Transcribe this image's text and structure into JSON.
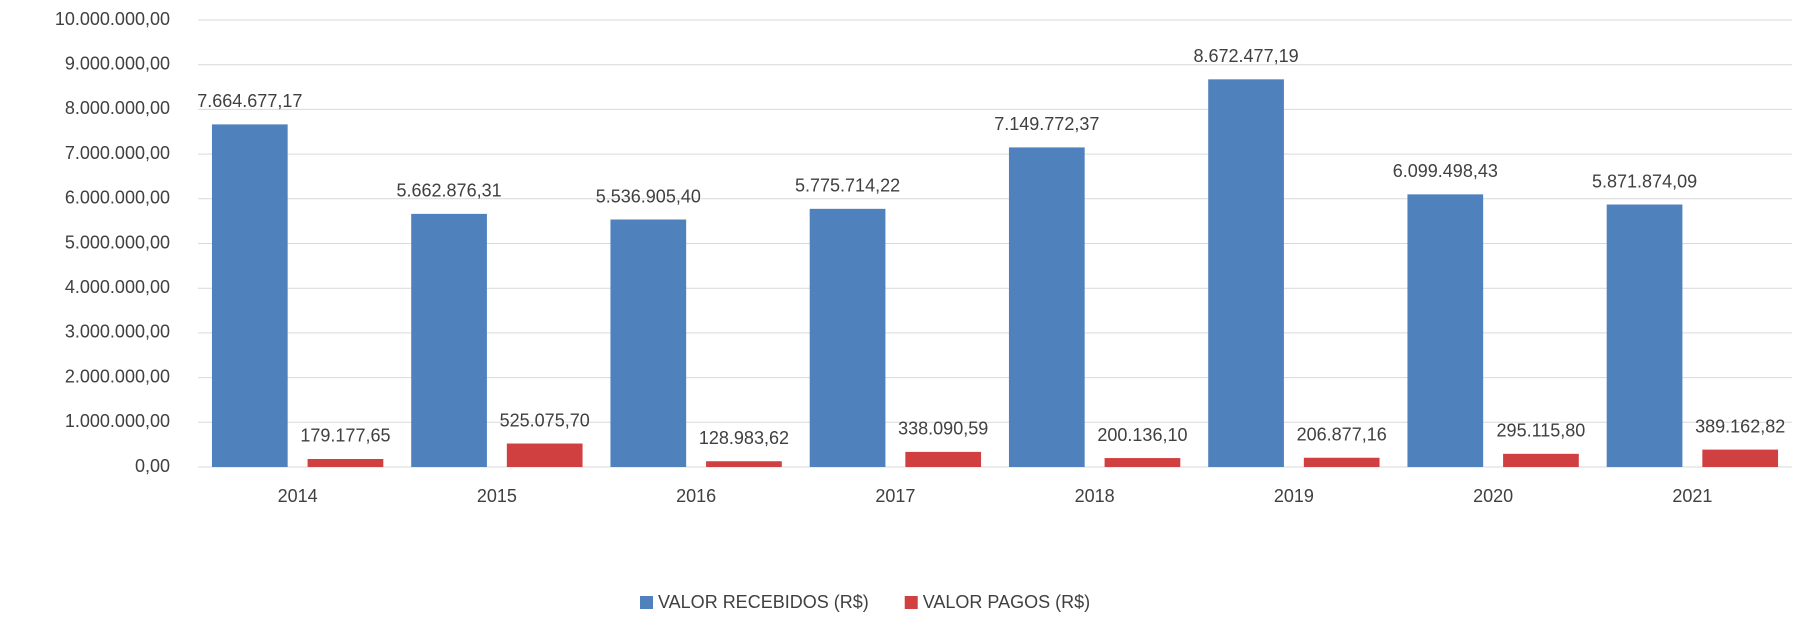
{
  "chart_data": {
    "type": "bar",
    "categories": [
      "2014",
      "2015",
      "2016",
      "2017",
      "2018",
      "2019",
      "2020",
      "2021"
    ],
    "series": [
      {
        "name": "VALOR RECEBIDOS (R$)",
        "color": "#4f81bd",
        "values": [
          7664677.17,
          5662876.31,
          5536905.4,
          5775714.22,
          7149772.37,
          8672477.19,
          6099498.43,
          5871874.09
        ],
        "value_labels": [
          "7.664.677,17",
          "5.662.876,31",
          "5.536.905,40",
          "5.775.714,22",
          "7.149.772,37",
          "8.672.477,19",
          "6.099.498,43",
          "5.871.874,09"
        ]
      },
      {
        "name": "VALOR PAGOS (R$)",
        "color": "#d04040",
        "values": [
          179177.65,
          525075.7,
          128983.62,
          338090.59,
          200136.1,
          206877.16,
          295115.8,
          389162.82
        ],
        "value_labels": [
          "179.177,65",
          "525.075,70",
          "128.983,62",
          "338.090,59",
          "200.136,10",
          "206.877,16",
          "295.115,80",
          "389.162,82"
        ]
      }
    ],
    "ylim": [
      0,
      10000000
    ],
    "yticks": [
      {
        "value": 0,
        "label": "0,00"
      },
      {
        "value": 1000000,
        "label": "1.000.000,00"
      },
      {
        "value": 2000000,
        "label": "2.000.000,00"
      },
      {
        "value": 3000000,
        "label": "3.000.000,00"
      },
      {
        "value": 4000000,
        "label": "4.000.000,00"
      },
      {
        "value": 5000000,
        "label": "5.000.000,00"
      },
      {
        "value": 6000000,
        "label": "6.000.000,00"
      },
      {
        "value": 7000000,
        "label": "7.000.000,00"
      },
      {
        "value": 8000000,
        "label": "8.000.000,00"
      },
      {
        "value": 9000000,
        "label": "9.000.000,00"
      },
      {
        "value": 10000000,
        "label": "10.000.000,00"
      }
    ],
    "grid": true,
    "legend": "bottom"
  }
}
